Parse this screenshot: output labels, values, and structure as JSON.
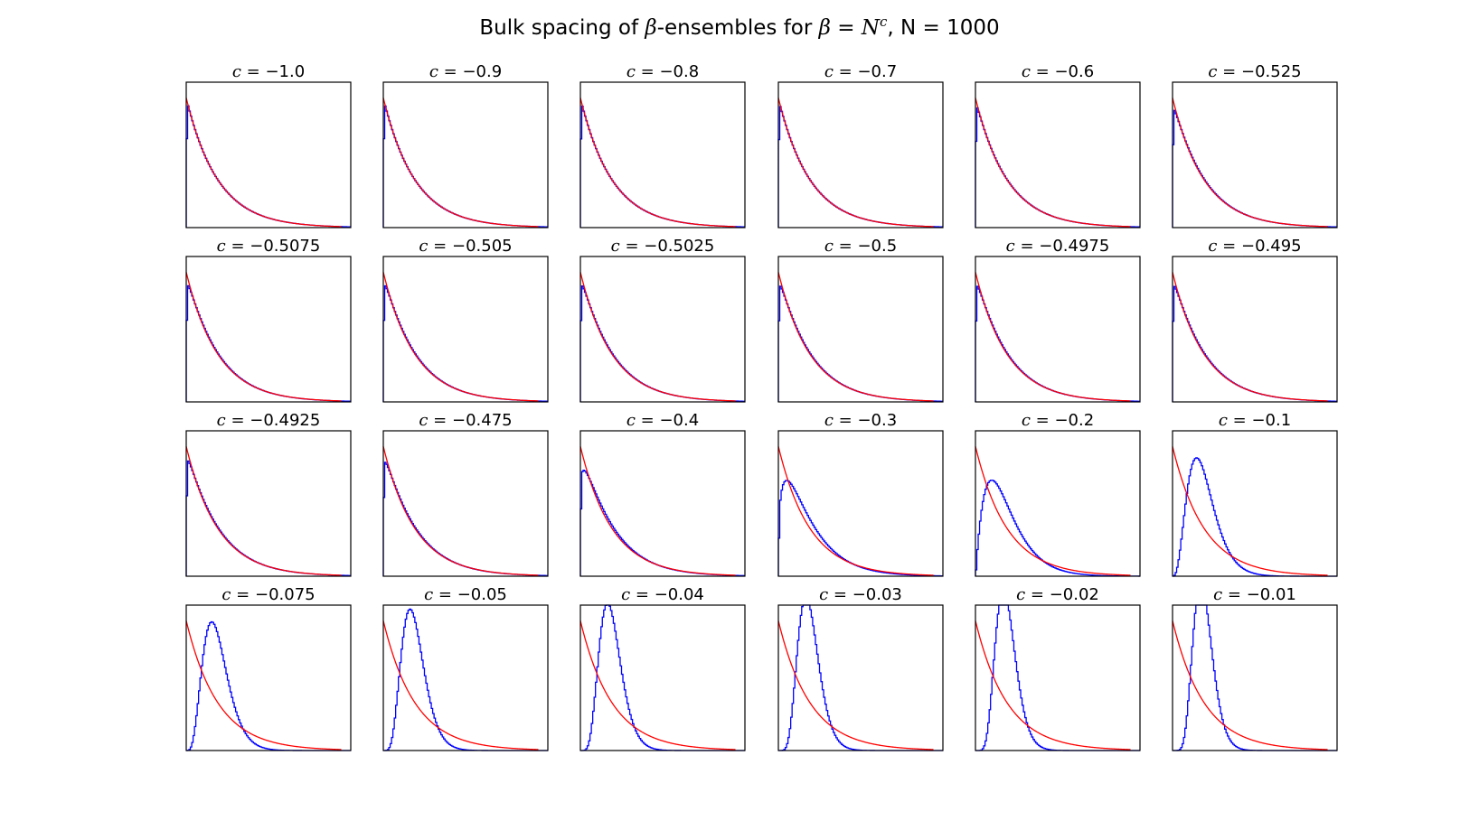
{
  "chart_data": {
    "type": "histogram-grid",
    "title": {
      "prefix": "Bulk spacing of ",
      "beta_symbol": "β",
      "mid": "-ensembles for ",
      "beta_eq": "β = N",
      "exponent": "c",
      "suffix": ", N = 1000"
    },
    "grid": {
      "rows": 4,
      "cols": 6
    },
    "axes_ticks": "none",
    "series_styles": {
      "histogram": {
        "name": "empirical spacing histogram",
        "color": "#0000ff",
        "style": "step"
      },
      "reference": {
        "name": "exponential density e^{-s}",
        "color": "#ff0000",
        "style": "line"
      }
    },
    "panel_title_prefix": "c = ",
    "panels": [
      {
        "c": -1.0,
        "label": "−1.0"
      },
      {
        "c": -0.9,
        "label": "−0.9"
      },
      {
        "c": -0.8,
        "label": "−0.8"
      },
      {
        "c": -0.7,
        "label": "−0.7"
      },
      {
        "c": -0.6,
        "label": "−0.6"
      },
      {
        "c": -0.525,
        "label": "−0.525"
      },
      {
        "c": -0.5075,
        "label": "−0.5075"
      },
      {
        "c": -0.505,
        "label": "−0.505"
      },
      {
        "c": -0.5025,
        "label": "−0.5025"
      },
      {
        "c": -0.5,
        "label": "−0.5"
      },
      {
        "c": -0.4975,
        "label": "−0.4975"
      },
      {
        "c": -0.495,
        "label": "−0.495"
      },
      {
        "c": -0.4925,
        "label": "−0.4925"
      },
      {
        "c": -0.475,
        "label": "−0.475"
      },
      {
        "c": -0.4,
        "label": "−0.4"
      },
      {
        "c": -0.3,
        "label": "−0.3"
      },
      {
        "c": -0.2,
        "label": "−0.2"
      },
      {
        "c": -0.1,
        "label": "−0.1"
      },
      {
        "c": -0.075,
        "label": "−0.075"
      },
      {
        "c": -0.05,
        "label": "−0.05"
      },
      {
        "c": -0.04,
        "label": "−0.04"
      },
      {
        "c": -0.03,
        "label": "−0.03"
      },
      {
        "c": -0.02,
        "label": "−0.02"
      },
      {
        "c": -0.01,
        "label": "−0.01"
      }
    ]
  }
}
